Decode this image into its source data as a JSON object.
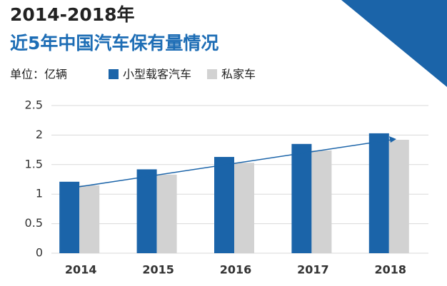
{
  "chart_data": {
    "type": "bar",
    "title": "2014-2018年",
    "subtitle": "近5年中国汽车保有量情况",
    "unit_label": "单位：亿辆",
    "categories": [
      "2014",
      "2015",
      "2016",
      "2017",
      "2018"
    ],
    "series": [
      {
        "name": "小型载客汽车",
        "color": "#1b64a9",
        "values": [
          1.21,
          1.42,
          1.63,
          1.85,
          2.03
        ]
      },
      {
        "name": "私家车",
        "color": "#d2d2d2",
        "values": [
          1.15,
          1.33,
          1.53,
          1.74,
          1.92
        ]
      }
    ],
    "ylim": [
      0,
      2.5
    ],
    "yticks": [
      0,
      0.5,
      1,
      1.5,
      2,
      2.5
    ],
    "grid": true
  }
}
